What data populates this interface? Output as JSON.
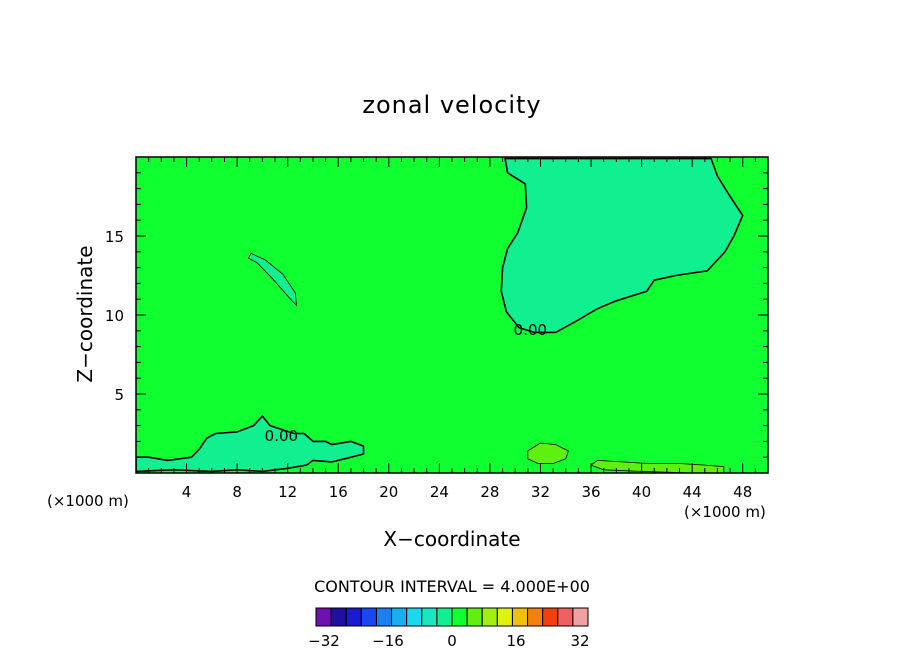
{
  "chart_data": {
    "type": "heatmap",
    "title": "zonal velocity",
    "xlabel": "X−coordinate",
    "ylabel": "Z−coordinate",
    "x_unit_left": "(×1000 m)",
    "x_unit_right": "(×1000 m)",
    "xlim": [
      0,
      50
    ],
    "ylim": [
      0,
      20
    ],
    "xticks": [
      4,
      8,
      12,
      16,
      20,
      24,
      28,
      32,
      36,
      40,
      44,
      48
    ],
    "xtick_labels": [
      "4",
      "8",
      "12",
      "16",
      "20",
      "24",
      "28",
      "32",
      "36",
      "40",
      "44",
      "48"
    ],
    "yticks": [
      5,
      10,
      15
    ],
    "ytick_labels": [
      "5",
      "10",
      "15"
    ],
    "x_minor_step": 1,
    "y_minor_step": 1,
    "contour_interval_text": "CONTOUR INTERVAL = 4.000E+00",
    "contour_labels": [
      {
        "text": "0.00",
        "x": 31.2,
        "z": 9.1
      },
      {
        "text": "0.00",
        "x": 11.5,
        "z": 2.4
      }
    ],
    "background_value": 2,
    "regions": [
      {
        "name": "upper-negative-region",
        "value": -2,
        "outline": "solid",
        "points": [
          [
            29.2,
            19.9
          ],
          [
            29.4,
            19.0
          ],
          [
            30.8,
            18.3
          ],
          [
            30.9,
            16.8
          ],
          [
            30.2,
            15.2
          ],
          [
            29.4,
            14.2
          ],
          [
            29.0,
            13.0
          ],
          [
            28.9,
            11.5
          ],
          [
            29.3,
            10.2
          ],
          [
            30.3,
            9.2
          ],
          [
            31.5,
            8.9
          ],
          [
            33.2,
            8.9
          ],
          [
            34.8,
            9.6
          ],
          [
            36.5,
            10.4
          ],
          [
            38.0,
            10.9
          ],
          [
            40.4,
            11.5
          ],
          [
            41.0,
            12.2
          ],
          [
            42.7,
            12.5
          ],
          [
            45.2,
            12.8
          ],
          [
            46.6,
            14.0
          ],
          [
            47.3,
            15.0
          ],
          [
            48.0,
            16.3
          ],
          [
            47.0,
            17.5
          ],
          [
            46.0,
            18.8
          ],
          [
            45.5,
            19.9
          ]
        ]
      },
      {
        "name": "lower-negative-region",
        "value": -2,
        "outline": "solid",
        "points": [
          [
            0,
            1.0
          ],
          [
            1.0,
            1.0
          ],
          [
            2.5,
            0.8
          ],
          [
            4.4,
            1.0
          ],
          [
            5.0,
            1.5
          ],
          [
            5.6,
            2.2
          ],
          [
            6.3,
            2.5
          ],
          [
            8.0,
            2.6
          ],
          [
            9.3,
            3.0
          ],
          [
            10.0,
            3.6
          ],
          [
            10.6,
            3.0
          ],
          [
            12.5,
            2.5
          ],
          [
            13.3,
            2.5
          ],
          [
            14.0,
            2.0
          ],
          [
            15.0,
            2.0
          ],
          [
            15.5,
            1.8
          ],
          [
            17.0,
            2.0
          ],
          [
            18.0,
            1.7
          ],
          [
            18.0,
            1.2
          ],
          [
            16.5,
            0.9
          ],
          [
            15.5,
            0.7
          ],
          [
            14.0,
            0.8
          ],
          [
            13.5,
            0.5
          ],
          [
            12.0,
            0.3
          ],
          [
            10.0,
            0.1
          ],
          [
            8.0,
            0.2
          ],
          [
            6.0,
            0.1
          ],
          [
            3.0,
            0.2
          ],
          [
            0,
            0.1
          ]
        ]
      },
      {
        "name": "elongated-negative-blob",
        "value": -2,
        "outline": "thin",
        "points": [
          [
            8.9,
            13.6
          ],
          [
            9.6,
            13.3
          ],
          [
            10.8,
            12.3
          ],
          [
            12.0,
            11.2
          ],
          [
            12.7,
            10.6
          ],
          [
            12.6,
            11.4
          ],
          [
            11.6,
            12.6
          ],
          [
            10.2,
            13.5
          ],
          [
            9.1,
            13.9
          ]
        ]
      },
      {
        "name": "positive-blob-32",
        "value": 6,
        "outline": "thin",
        "points": [
          [
            31.0,
            1.4
          ],
          [
            32.0,
            1.9
          ],
          [
            33.2,
            1.8
          ],
          [
            34.2,
            1.4
          ],
          [
            34.0,
            0.9
          ],
          [
            33.0,
            0.6
          ],
          [
            31.8,
            0.6
          ],
          [
            31.0,
            0.9
          ]
        ]
      },
      {
        "name": "positive-strip-40-48",
        "value": 6,
        "outline": "thin",
        "points": [
          [
            36.5,
            0.8
          ],
          [
            38.5,
            0.7
          ],
          [
            40.5,
            0.6
          ],
          [
            43.0,
            0.6
          ],
          [
            45.0,
            0.5
          ],
          [
            46.5,
            0.4
          ],
          [
            46.5,
            0.0
          ],
          [
            44.0,
            0.0
          ],
          [
            40.0,
            0.1
          ],
          [
            37.0,
            0.2
          ],
          [
            36.0,
            0.5
          ]
        ]
      }
    ],
    "colorbar": {
      "ticks": [
        -32,
        -16,
        0,
        16,
        32
      ],
      "tick_labels": [
        "−32",
        "−16",
        "0",
        "16",
        "32"
      ],
      "levels": [
        -34,
        -30,
        -26,
        -22,
        -18,
        -14,
        -10,
        -6,
        -2,
        2,
        6,
        10,
        14,
        18,
        22,
        26,
        30,
        34
      ],
      "colors": [
        "#7010b0",
        "#2010a0",
        "#1a1ad0",
        "#1a48f0",
        "#1a7ff0",
        "#1aaef0",
        "#1ad8f0",
        "#1ae6c0",
        "#10f090",
        "#10ff30",
        "#60f010",
        "#a0f010",
        "#e0f010",
        "#f0c010",
        "#f08010",
        "#f04010",
        "#f06060",
        "#f0a0a0"
      ]
    }
  }
}
